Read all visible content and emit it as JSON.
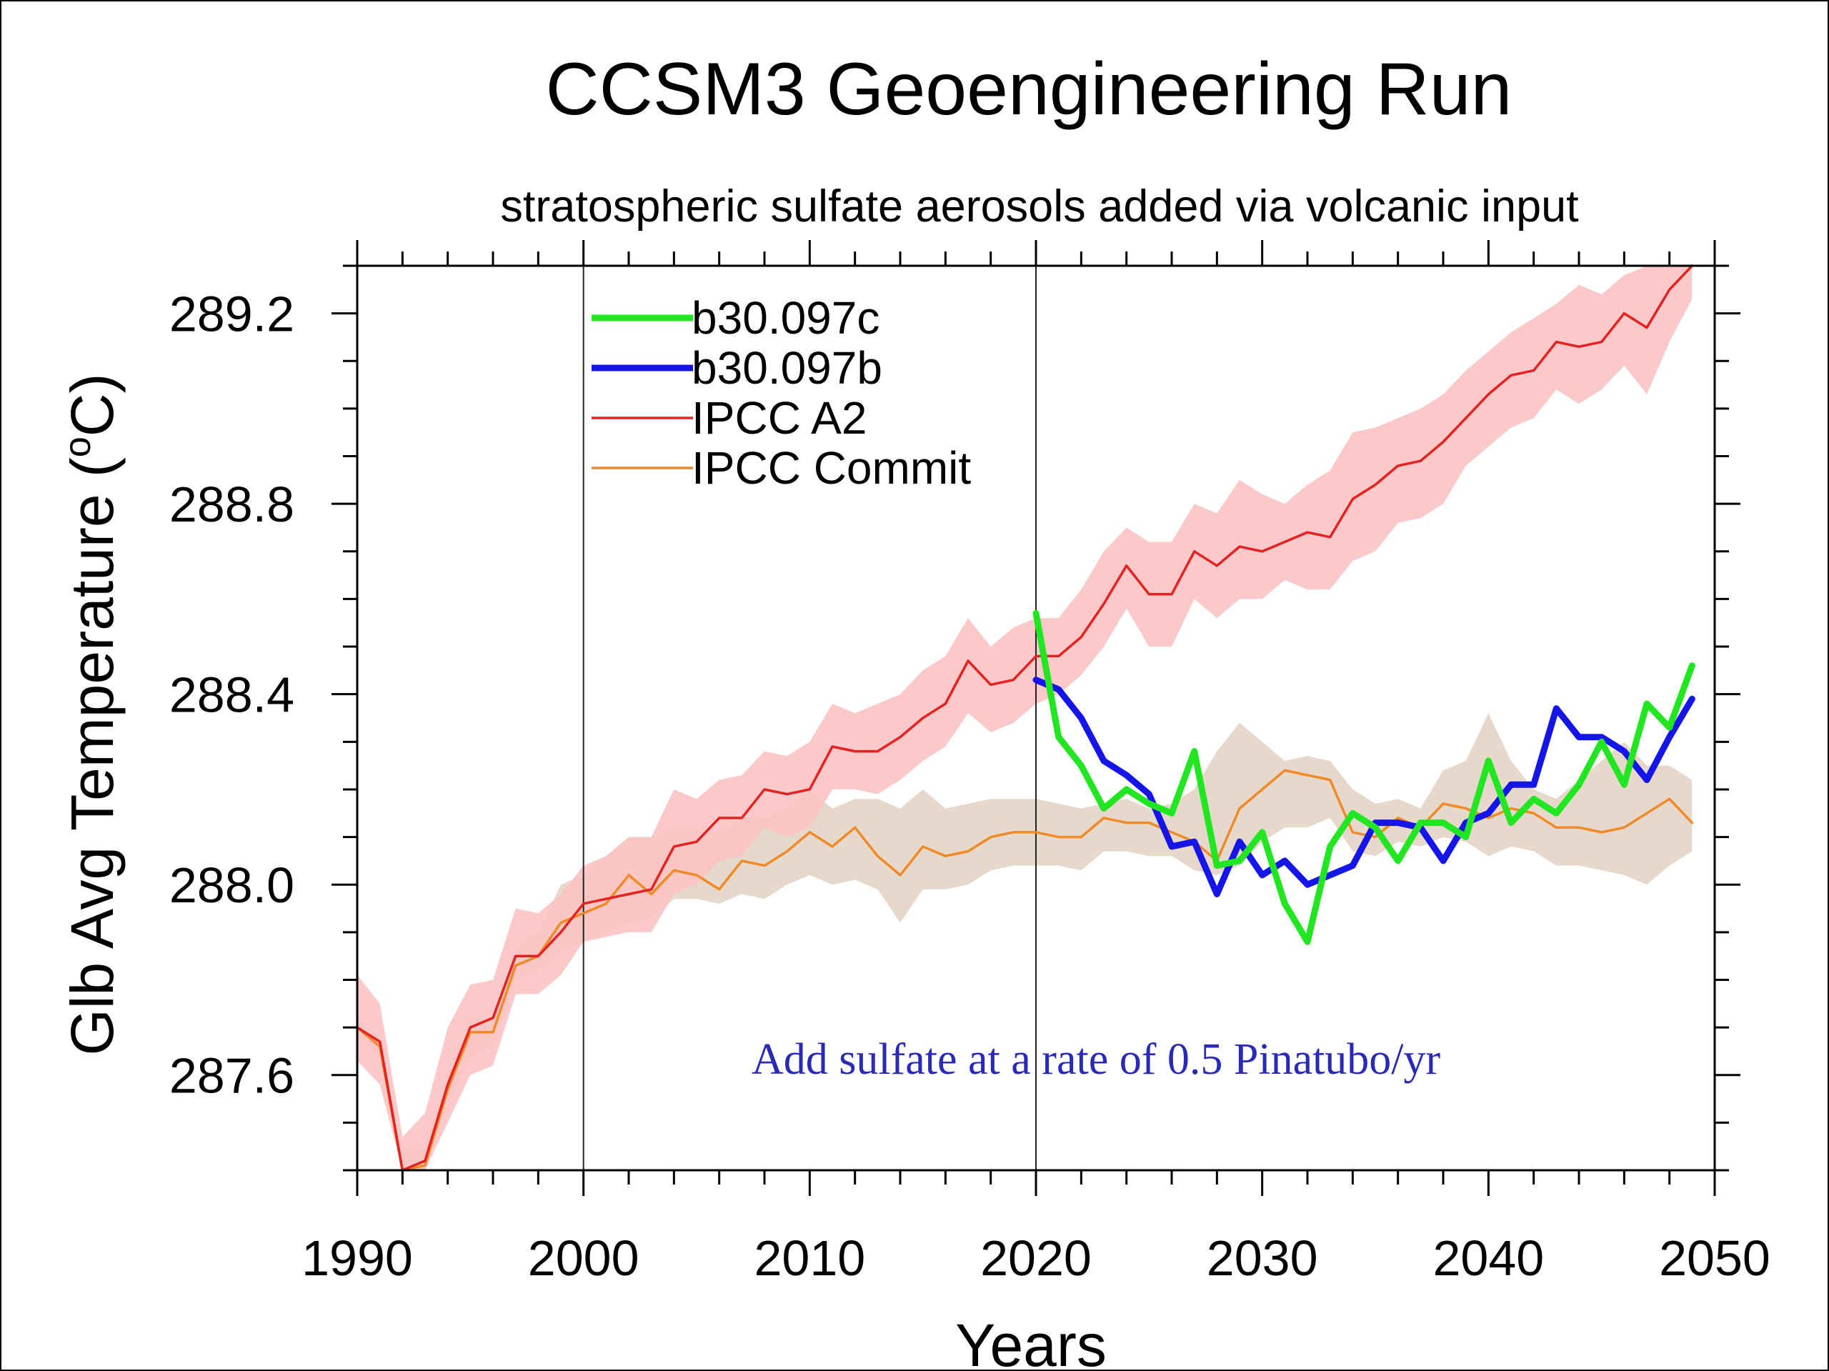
{
  "chart_data": {
    "type": "line",
    "title": "CCSM3 Geoengineering Run",
    "subtitle": "stratospheric sulfate aerosols added via volcanic input",
    "xlabel": "Years",
    "ylabel": "Glb Avg Temperature (°C)",
    "ylabel_parts": {
      "pre": "Glb Avg Temperature (",
      "sup": "o",
      "post": "C)"
    },
    "xlim": [
      1990,
      2050
    ],
    "ylim": [
      287.4,
      289.3
    ],
    "x_ticks": [
      1990,
      2000,
      2010,
      2020,
      2030,
      2040,
      2050
    ],
    "y_ticks": [
      287.6,
      288.0,
      288.4,
      288.8,
      289.2
    ],
    "y_tick_labels": [
      "287.6",
      "288.0",
      "288.4",
      "288.8",
      "289.2"
    ],
    "vertical_lines": [
      2000,
      2020
    ],
    "annotation": {
      "text": "Add sulfate at a rate of 0.5 Pinatubo/yr",
      "color": "#2a2ab8"
    },
    "legend_position": "top-left",
    "series": [
      {
        "name": "b30.097c",
        "color": "#22e622",
        "x": [
          2020,
          2021,
          2022,
          2023,
          2024,
          2025,
          2026,
          2027,
          2028,
          2029,
          2030,
          2031,
          2032,
          2033,
          2034,
          2035,
          2036,
          2037,
          2038,
          2039,
          2040,
          2041,
          2042,
          2043,
          2044,
          2045,
          2046,
          2047,
          2048,
          2049
        ],
        "values": [
          288.57,
          288.31,
          288.25,
          288.16,
          288.2,
          288.17,
          288.15,
          288.28,
          288.04,
          288.05,
          288.11,
          287.96,
          287.88,
          288.08,
          288.15,
          288.12,
          288.05,
          288.13,
          288.13,
          288.1,
          288.26,
          288.13,
          288.18,
          288.15,
          288.21,
          288.3,
          288.21,
          288.38,
          288.33,
          288.46
        ]
      },
      {
        "name": "b30.097b",
        "color": "#1515e8",
        "x": [
          2020,
          2021,
          2022,
          2023,
          2024,
          2025,
          2026,
          2027,
          2028,
          2029,
          2030,
          2031,
          2032,
          2033,
          2034,
          2035,
          2036,
          2037,
          2038,
          2039,
          2040,
          2041,
          2042,
          2043,
          2044,
          2045,
          2046,
          2047,
          2048,
          2049
        ],
        "values": [
          288.43,
          288.41,
          288.35,
          288.26,
          288.23,
          288.19,
          288.08,
          288.09,
          287.98,
          288.09,
          288.02,
          288.05,
          288.0,
          288.02,
          288.04,
          288.13,
          288.13,
          288.12,
          288.05,
          288.13,
          288.15,
          288.21,
          288.21,
          288.37,
          288.31,
          288.31,
          288.28,
          288.22,
          288.31,
          288.39
        ]
      },
      {
        "name": "IPCC A2",
        "color": "#e32222",
        "band_color": "#fbc3c3",
        "x": [
          1990,
          1991,
          1992,
          1993,
          1994,
          1995,
          1996,
          1997,
          1998,
          1999,
          2000,
          2001,
          2002,
          2003,
          2004,
          2005,
          2006,
          2007,
          2008,
          2009,
          2010,
          2011,
          2012,
          2013,
          2014,
          2015,
          2016,
          2017,
          2018,
          2019,
          2020,
          2021,
          2022,
          2023,
          2024,
          2025,
          2026,
          2027,
          2028,
          2029,
          2030,
          2031,
          2032,
          2033,
          2034,
          2035,
          2036,
          2037,
          2038,
          2039,
          2040,
          2041,
          2042,
          2043,
          2044,
          2045,
          2046,
          2047,
          2048,
          2049
        ],
        "values": [
          287.7,
          287.67,
          287.4,
          287.42,
          287.58,
          287.7,
          287.72,
          287.85,
          287.85,
          287.9,
          287.96,
          287.97,
          287.98,
          287.99,
          288.08,
          288.09,
          288.14,
          288.14,
          288.2,
          288.19,
          288.2,
          288.29,
          288.28,
          288.28,
          288.31,
          288.35,
          288.38,
          288.47,
          288.42,
          288.43,
          288.48,
          288.48,
          288.52,
          288.59,
          288.67,
          288.61,
          288.61,
          288.7,
          288.67,
          288.71,
          288.7,
          288.72,
          288.74,
          288.73,
          288.81,
          288.84,
          288.88,
          288.89,
          288.93,
          288.98,
          289.03,
          289.07,
          289.08,
          289.14,
          289.13,
          289.14,
          289.2,
          289.17,
          289.25,
          289.31
        ],
        "band_upper": [
          287.81,
          287.75,
          287.47,
          287.52,
          287.7,
          287.79,
          287.8,
          287.95,
          287.94,
          287.98,
          288.04,
          288.06,
          288.1,
          288.1,
          288.2,
          288.18,
          288.22,
          288.23,
          288.28,
          288.27,
          288.3,
          288.38,
          288.36,
          288.38,
          288.4,
          288.45,
          288.48,
          288.56,
          288.5,
          288.54,
          288.56,
          288.56,
          288.62,
          288.7,
          288.75,
          288.72,
          288.72,
          288.8,
          288.78,
          288.85,
          288.82,
          288.8,
          288.84,
          288.87,
          288.95,
          288.96,
          288.98,
          289.0,
          289.03,
          289.08,
          289.12,
          289.16,
          289.19,
          289.22,
          289.26,
          289.24,
          289.28,
          289.3,
          289.34,
          289.35
        ],
        "band_lower": [
          287.63,
          287.58,
          287.35,
          287.36,
          287.5,
          287.6,
          287.62,
          287.77,
          287.77,
          287.81,
          287.88,
          287.89,
          287.9,
          287.9,
          287.98,
          288.0,
          288.05,
          288.06,
          288.12,
          288.1,
          288.12,
          288.2,
          288.2,
          288.19,
          288.22,
          288.26,
          288.29,
          288.36,
          288.32,
          288.34,
          288.38,
          288.4,
          288.44,
          288.5,
          288.58,
          288.5,
          288.5,
          288.6,
          288.56,
          288.6,
          288.6,
          288.64,
          288.62,
          288.62,
          288.68,
          288.7,
          288.76,
          288.77,
          288.8,
          288.88,
          288.92,
          288.96,
          288.98,
          289.04,
          289.01,
          289.04,
          289.09,
          289.03,
          289.14,
          289.23
        ]
      },
      {
        "name": "IPCC Commit",
        "color": "#f08a28",
        "band_color": "#e3d5c6",
        "x": [
          1990,
          1991,
          1992,
          1993,
          1994,
          1995,
          1996,
          1997,
          1998,
          1999,
          2000,
          2001,
          2002,
          2003,
          2004,
          2005,
          2006,
          2007,
          2008,
          2009,
          2010,
          2011,
          2012,
          2013,
          2014,
          2015,
          2016,
          2017,
          2018,
          2019,
          2020,
          2021,
          2022,
          2023,
          2024,
          2025,
          2026,
          2027,
          2028,
          2029,
          2030,
          2031,
          2032,
          2033,
          2034,
          2035,
          2036,
          2037,
          2038,
          2039,
          2040,
          2041,
          2042,
          2043,
          2044,
          2045,
          2046,
          2047,
          2048,
          2049
        ],
        "values": [
          287.7,
          287.66,
          287.4,
          287.41,
          287.57,
          287.69,
          287.69,
          287.83,
          287.85,
          287.92,
          287.94,
          287.96,
          288.02,
          287.98,
          288.03,
          288.02,
          287.99,
          288.05,
          288.04,
          288.07,
          288.11,
          288.08,
          288.12,
          288.06,
          288.02,
          288.08,
          288.06,
          288.07,
          288.1,
          288.11,
          288.11,
          288.1,
          288.1,
          288.14,
          288.13,
          288.13,
          288.11,
          288.09,
          288.05,
          288.16,
          288.2,
          288.24,
          288.23,
          288.22,
          288.11,
          288.1,
          288.14,
          288.12,
          288.17,
          288.16,
          288.14,
          288.16,
          288.15,
          288.12,
          288.12,
          288.11,
          288.12,
          288.15,
          288.18,
          288.13
        ],
        "band_upper": [
          287.72,
          287.68,
          287.44,
          287.45,
          287.6,
          287.72,
          287.72,
          287.87,
          287.9,
          288.0,
          288.02,
          288.06,
          288.1,
          288.1,
          288.12,
          288.12,
          288.11,
          288.14,
          288.14,
          288.16,
          288.2,
          288.16,
          288.18,
          288.18,
          288.16,
          288.2,
          288.16,
          288.17,
          288.18,
          288.18,
          288.18,
          288.17,
          288.16,
          288.17,
          288.18,
          288.16,
          288.17,
          288.2,
          288.28,
          288.34,
          288.3,
          288.26,
          288.27,
          288.26,
          288.2,
          288.17,
          288.18,
          288.16,
          288.24,
          288.26,
          288.36,
          288.26,
          288.2,
          288.18,
          288.22,
          288.26,
          288.3,
          288.25,
          288.25,
          288.22
        ],
        "band_lower": [
          287.68,
          287.64,
          287.38,
          287.38,
          287.54,
          287.64,
          287.66,
          287.8,
          287.82,
          287.86,
          287.88,
          287.9,
          287.92,
          287.93,
          287.97,
          287.97,
          287.96,
          287.98,
          287.97,
          288.0,
          288.02,
          288.0,
          288.01,
          287.99,
          287.92,
          287.99,
          287.99,
          288.0,
          288.03,
          288.04,
          288.04,
          288.04,
          288.03,
          288.07,
          288.07,
          288.06,
          288.06,
          288.03,
          288.02,
          288.04,
          288.09,
          288.12,
          288.12,
          288.14,
          288.07,
          288.06,
          288.09,
          288.08,
          288.1,
          288.09,
          288.06,
          288.08,
          288.07,
          288.04,
          288.04,
          288.03,
          288.02,
          288.0,
          288.04,
          288.07
        ]
      }
    ]
  }
}
